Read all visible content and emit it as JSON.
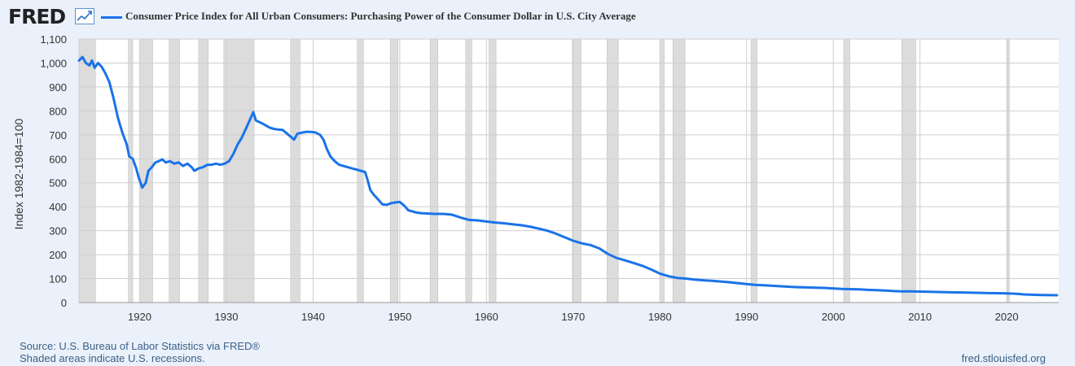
{
  "header": {
    "logo_text": "FRED",
    "logo_icon": "line-chart-icon"
  },
  "colors": {
    "line": "#1a73e8",
    "recession": "#dcdcdc",
    "grid": "#cfcfcf",
    "plot_bg": "#ffffff",
    "page_bg": "#eaf1fa"
  },
  "chart_data": {
    "type": "line",
    "title": "",
    "series": [
      {
        "name": "Consumer Price Index for All Urban Consumers: Purchasing Power of the Consumer Dollar in U.S. City Average",
        "points": [
          [
            1913.0,
            1010
          ],
          [
            1913.4,
            1025
          ],
          [
            1913.8,
            1000
          ],
          [
            1914.2,
            990
          ],
          [
            1914.5,
            1010
          ],
          [
            1914.8,
            980
          ],
          [
            1915.2,
            1000
          ],
          [
            1915.6,
            985
          ],
          [
            1916.0,
            960
          ],
          [
            1916.5,
            920
          ],
          [
            1917.0,
            850
          ],
          [
            1917.5,
            770
          ],
          [
            1918.0,
            710
          ],
          [
            1918.5,
            660
          ],
          [
            1918.8,
            610
          ],
          [
            1919.2,
            600
          ],
          [
            1919.6,
            560
          ],
          [
            1919.9,
            520
          ],
          [
            1920.3,
            480
          ],
          [
            1920.7,
            500
          ],
          [
            1921.0,
            550
          ],
          [
            1921.4,
            565
          ],
          [
            1921.8,
            585
          ],
          [
            1922.2,
            590
          ],
          [
            1922.6,
            598
          ],
          [
            1923.0,
            585
          ],
          [
            1923.5,
            590
          ],
          [
            1924.0,
            580
          ],
          [
            1924.5,
            585
          ],
          [
            1925.0,
            570
          ],
          [
            1925.5,
            580
          ],
          [
            1926.0,
            565
          ],
          [
            1926.3,
            550
          ],
          [
            1926.8,
            560
          ],
          [
            1927.3,
            565
          ],
          [
            1927.8,
            575
          ],
          [
            1928.3,
            575
          ],
          [
            1928.8,
            580
          ],
          [
            1929.3,
            575
          ],
          [
            1929.8,
            580
          ],
          [
            1930.3,
            590
          ],
          [
            1930.8,
            620
          ],
          [
            1931.3,
            660
          ],
          [
            1931.8,
            690
          ],
          [
            1932.3,
            730
          ],
          [
            1932.8,
            770
          ],
          [
            1933.1,
            795
          ],
          [
            1933.4,
            760
          ],
          [
            1934.0,
            750
          ],
          [
            1934.5,
            740
          ],
          [
            1935.0,
            730
          ],
          [
            1935.5,
            725
          ],
          [
            1936.0,
            722
          ],
          [
            1936.5,
            720
          ],
          [
            1937.0,
            705
          ],
          [
            1937.5,
            690
          ],
          [
            1937.8,
            680
          ],
          [
            1938.2,
            705
          ],
          [
            1938.8,
            710
          ],
          [
            1939.3,
            713
          ],
          [
            1939.8,
            712
          ],
          [
            1940.3,
            710
          ],
          [
            1940.8,
            700
          ],
          [
            1941.2,
            680
          ],
          [
            1941.6,
            640
          ],
          [
            1942.0,
            610
          ],
          [
            1942.5,
            590
          ],
          [
            1943.0,
            575
          ],
          [
            1943.5,
            570
          ],
          [
            1944.0,
            565
          ],
          [
            1944.5,
            560
          ],
          [
            1945.0,
            555
          ],
          [
            1945.5,
            550
          ],
          [
            1946.0,
            545
          ],
          [
            1946.3,
            510
          ],
          [
            1946.6,
            470
          ],
          [
            1947.0,
            450
          ],
          [
            1947.5,
            430
          ],
          [
            1948.0,
            410
          ],
          [
            1948.5,
            408
          ],
          [
            1949.0,
            415
          ],
          [
            1949.5,
            418
          ],
          [
            1950.0,
            420
          ],
          [
            1950.5,
            405
          ],
          [
            1951.0,
            385
          ],
          [
            1951.5,
            380
          ],
          [
            1952.0,
            375
          ],
          [
            1952.5,
            373
          ],
          [
            1953.0,
            372
          ],
          [
            1954.0,
            370
          ],
          [
            1955.0,
            370
          ],
          [
            1956.0,
            367
          ],
          [
            1957.0,
            355
          ],
          [
            1958.0,
            345
          ],
          [
            1959.0,
            343
          ],
          [
            1960.0,
            338
          ],
          [
            1961.0,
            334
          ],
          [
            1962.0,
            331
          ],
          [
            1963.0,
            327
          ],
          [
            1964.0,
            323
          ],
          [
            1965.0,
            317
          ],
          [
            1966.0,
            309
          ],
          [
            1967.0,
            300
          ],
          [
            1968.0,
            288
          ],
          [
            1969.0,
            273
          ],
          [
            1970.0,
            258
          ],
          [
            1971.0,
            247
          ],
          [
            1972.0,
            240
          ],
          [
            1973.0,
            226
          ],
          [
            1974.0,
            203
          ],
          [
            1975.0,
            186
          ],
          [
            1976.0,
            176
          ],
          [
            1977.0,
            165
          ],
          [
            1978.0,
            153
          ],
          [
            1979.0,
            138
          ],
          [
            1980.0,
            121
          ],
          [
            1981.0,
            110
          ],
          [
            1982.0,
            103
          ],
          [
            1983.0,
            100
          ],
          [
            1984.0,
            96
          ],
          [
            1985.0,
            93
          ],
          [
            1986.0,
            91
          ],
          [
            1987.0,
            88
          ],
          [
            1988.0,
            85
          ],
          [
            1989.0,
            81
          ],
          [
            1990.0,
            77
          ],
          [
            1991.0,
            74
          ],
          [
            1992.0,
            72
          ],
          [
            1993.0,
            70
          ],
          [
            1994.0,
            68
          ],
          [
            1995.0,
            66
          ],
          [
            1996.0,
            64
          ],
          [
            1997.0,
            63
          ],
          [
            1998.0,
            62
          ],
          [
            1999.0,
            61
          ],
          [
            2000.0,
            59
          ],
          [
            2001.0,
            57
          ],
          [
            2002.0,
            56
          ],
          [
            2003.0,
            55
          ],
          [
            2004.0,
            53
          ],
          [
            2005.0,
            52
          ],
          [
            2006.0,
            50
          ],
          [
            2007.0,
            48
          ],
          [
            2008.0,
            47
          ],
          [
            2009.0,
            47
          ],
          [
            2010.0,
            46
          ],
          [
            2011.0,
            45
          ],
          [
            2012.0,
            44
          ],
          [
            2013.0,
            43
          ],
          [
            2014.0,
            42.5
          ],
          [
            2015.0,
            42
          ],
          [
            2016.0,
            41
          ],
          [
            2017.0,
            40.5
          ],
          [
            2018.0,
            39.5
          ],
          [
            2019.0,
            39
          ],
          [
            2020.0,
            38.5
          ],
          [
            2021.0,
            37
          ],
          [
            2022.0,
            34
          ],
          [
            2023.0,
            32.5
          ],
          [
            2024.0,
            31.5
          ],
          [
            2025.0,
            31
          ],
          [
            2025.8,
            30.5
          ]
        ]
      }
    ],
    "xlabel": "",
    "ylabel": "Index 1982-1984=100",
    "xlim": [
      1913,
      2026
    ],
    "ylim": [
      0,
      1100
    ],
    "xticks": [
      1920,
      1930,
      1940,
      1950,
      1960,
      1970,
      1980,
      1990,
      2000,
      2010,
      2020
    ],
    "yticks": [
      0,
      100,
      200,
      300,
      400,
      500,
      600,
      700,
      800,
      900,
      1000,
      1100
    ],
    "ytick_labels": [
      "0",
      "100",
      "200",
      "300",
      "400",
      "500",
      "600",
      "700",
      "800",
      "900",
      "1,000",
      "1,100"
    ],
    "grid": true,
    "legend_position": "top-left",
    "recessions": [
      [
        1913.0,
        1914.9
      ],
      [
        1918.7,
        1919.2
      ],
      [
        1920.0,
        1921.5
      ],
      [
        1923.4,
        1924.6
      ],
      [
        1926.8,
        1927.9
      ],
      [
        1929.7,
        1933.2
      ],
      [
        1937.4,
        1938.5
      ],
      [
        1945.1,
        1945.8
      ],
      [
        1948.9,
        1949.8
      ],
      [
        1953.5,
        1954.4
      ],
      [
        1957.6,
        1958.3
      ],
      [
        1960.3,
        1961.1
      ],
      [
        1969.9,
        1970.9
      ],
      [
        1973.9,
        1975.2
      ],
      [
        1980.0,
        1980.5
      ],
      [
        1981.5,
        1982.9
      ],
      [
        1990.5,
        1991.2
      ],
      [
        2001.2,
        2001.9
      ],
      [
        2007.9,
        2009.5
      ],
      [
        2020.1,
        2020.3
      ]
    ]
  },
  "footer": {
    "source": "Source: U.S. Bureau of Labor Statistics via FRED®",
    "shading_note": "Shaded areas indicate U.S. recessions.",
    "url": "fred.stlouisfed.org"
  }
}
